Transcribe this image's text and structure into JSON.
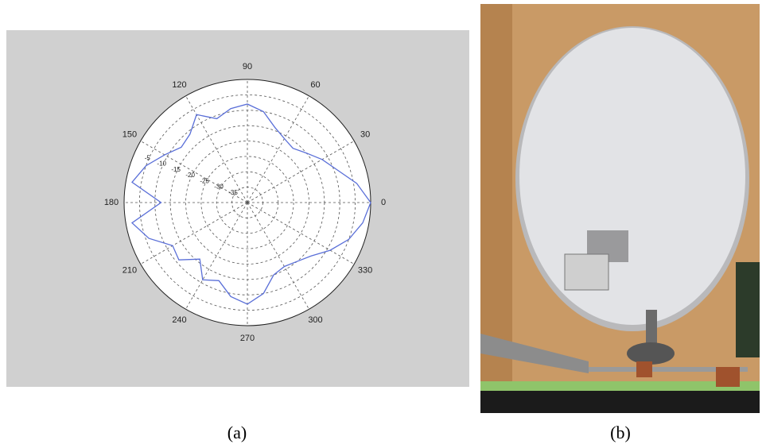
{
  "chart_data": {
    "type": "polar",
    "x": [
      0,
      10,
      20,
      30,
      40,
      50,
      60,
      70,
      80,
      90,
      100,
      110,
      120,
      130,
      140,
      150,
      160,
      170,
      180,
      190,
      200,
      210,
      220,
      230,
      240,
      250,
      260,
      270,
      280,
      290,
      300,
      310,
      320,
      330,
      340,
      350
    ],
    "values": [
      0,
      -4,
      -9,
      -12,
      -15,
      -17,
      -16,
      -14,
      -10,
      -8,
      -9,
      -11,
      -7,
      -11,
      -12,
      -9,
      -5,
      -2,
      -12,
      -2,
      -6,
      -12,
      -11,
      -16,
      -11,
      -13,
      -9,
      -7,
      -10,
      -15,
      -16,
      -15,
      -13,
      -9,
      -5,
      -2
    ],
    "color": "#5a6fd8",
    "rlim": [
      -40,
      0
    ],
    "rticks": [
      -35,
      -30,
      -25,
      -20,
      -15,
      -10,
      -5
    ],
    "thetaticks": [
      0,
      30,
      60,
      90,
      120,
      150,
      180,
      210,
      240,
      270,
      300,
      330
    ],
    "grid": true
  },
  "panel_labels": [
    "(a)",
    "(b)"
  ]
}
